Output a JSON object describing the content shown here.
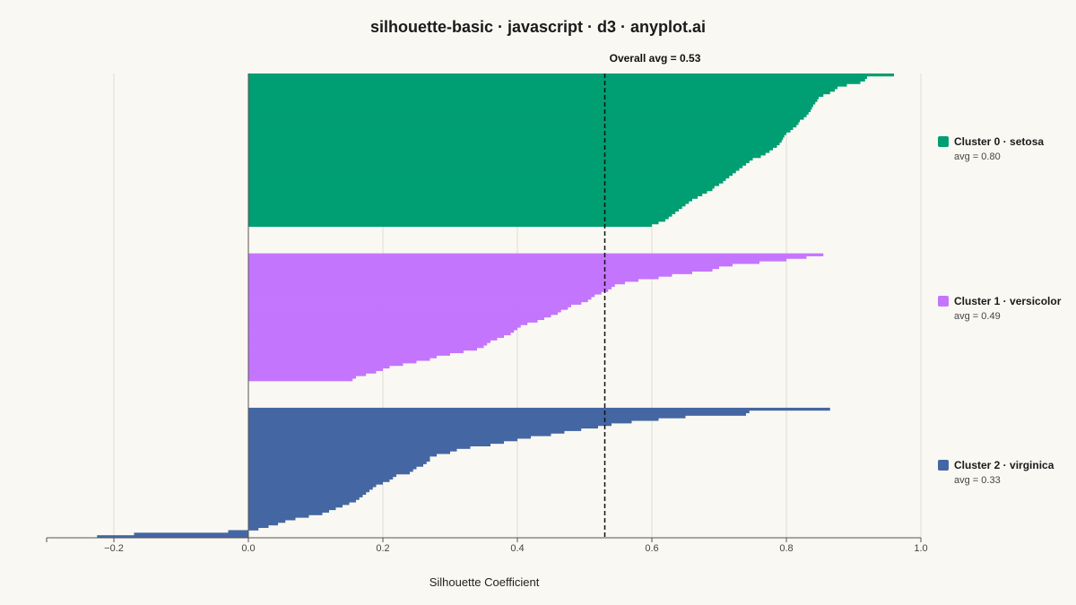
{
  "chart_data": {
    "type": "bar",
    "orientation": "horizontal",
    "title": "silhouette-basic · javascript · d3 · anyplot.ai",
    "xlabel": "Silhouette Coefficient",
    "ylabel": "",
    "xlim": [
      -0.3,
      1.0
    ],
    "x_ticks": [
      {
        "value": -0.2,
        "label": "−0.2"
      },
      {
        "value": 0.0,
        "label": "0.0"
      },
      {
        "value": 0.2,
        "label": "0.2"
      },
      {
        "value": 0.4,
        "label": "0.4"
      },
      {
        "value": 0.6,
        "label": "0.6"
      },
      {
        "value": 0.8,
        "label": "0.8"
      },
      {
        "value": 1.0,
        "label": "1.0"
      }
    ],
    "grid": true,
    "legend_position": "right",
    "overall_avg": {
      "value": 0.53,
      "label": "Overall avg = 0.53"
    },
    "series": [
      {
        "name": "Cluster 0 · setosa",
        "avg_label": "avg = 0.80",
        "avg": 0.8,
        "color": "#009e73",
        "values": [
          0.96,
          0.92,
          0.917,
          0.91,
          0.89,
          0.876,
          0.872,
          0.865,
          0.855,
          0.848,
          0.846,
          0.843,
          0.84,
          0.838,
          0.836,
          0.833,
          0.83,
          0.826,
          0.82,
          0.818,
          0.815,
          0.81,
          0.806,
          0.8,
          0.797,
          0.795,
          0.793,
          0.79,
          0.786,
          0.78,
          0.775,
          0.769,
          0.762,
          0.75,
          0.745,
          0.74,
          0.735,
          0.73,
          0.725,
          0.72,
          0.715,
          0.71,
          0.706,
          0.7,
          0.693,
          0.69,
          0.682,
          0.675,
          0.668,
          0.66,
          0.655,
          0.65,
          0.645,
          0.64,
          0.635,
          0.63,
          0.625,
          0.62,
          0.61,
          0.6
        ]
      },
      {
        "name": "Cluster 1 · versicolor",
        "avg_label": "avg = 0.49",
        "avg": 0.49,
        "color": "#c475fd",
        "values": [
          0.855,
          0.83,
          0.8,
          0.76,
          0.72,
          0.7,
          0.69,
          0.66,
          0.63,
          0.61,
          0.58,
          0.56,
          0.545,
          0.54,
          0.535,
          0.525,
          0.515,
          0.51,
          0.505,
          0.495,
          0.48,
          0.475,
          0.465,
          0.46,
          0.45,
          0.44,
          0.43,
          0.415,
          0.405,
          0.4,
          0.395,
          0.39,
          0.38,
          0.37,
          0.36,
          0.355,
          0.35,
          0.34,
          0.32,
          0.3,
          0.28,
          0.27,
          0.25,
          0.23,
          0.21,
          0.2,
          0.19,
          0.175,
          0.16,
          0.155
        ]
      },
      {
        "name": "Cluster 2 · virginica",
        "avg_label": "avg = 0.33",
        "avg": 0.33,
        "color": "#4467a3",
        "values": [
          0.865,
          0.745,
          0.74,
          0.65,
          0.61,
          0.57,
          0.54,
          0.52,
          0.495,
          0.47,
          0.45,
          0.42,
          0.4,
          0.38,
          0.36,
          0.33,
          0.31,
          0.3,
          0.28,
          0.27,
          0.27,
          0.265,
          0.26,
          0.25,
          0.245,
          0.24,
          0.22,
          0.215,
          0.21,
          0.2,
          0.19,
          0.185,
          0.18,
          0.175,
          0.17,
          0.165,
          0.16,
          0.15,
          0.14,
          0.13,
          0.12,
          0.11,
          0.09,
          0.07,
          0.055,
          0.044,
          0.03,
          0.015,
          -0.03,
          -0.17,
          -0.225
        ]
      }
    ]
  }
}
